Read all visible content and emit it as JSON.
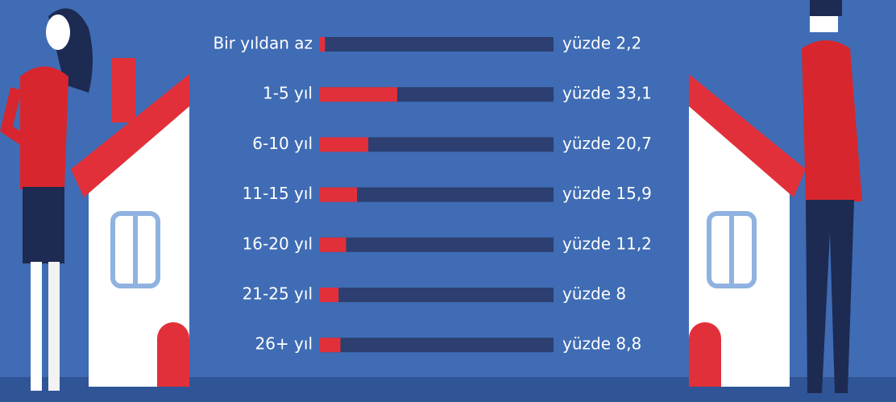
{
  "chart_data": {
    "type": "bar",
    "categories": [
      "Bir yıldan az",
      "1-5 yıl",
      "6-10 yıl",
      "11-15 yıl",
      "16-20 yıl",
      "21-25 yıl",
      "26+ yıl"
    ],
    "values": [
      2.2,
      33.1,
      20.7,
      15.9,
      11.2,
      8,
      8.8
    ],
    "value_labels": [
      "yüzde 2,2",
      "yüzde 33,1",
      "yüzde 20,7",
      "yüzde 15,9",
      "yüzde 11,2",
      "yüzde 8",
      "yüzde 8,8"
    ],
    "color": "#e2303a",
    "track_color": "#2c3f70",
    "xlim": [
      0,
      100
    ]
  }
}
